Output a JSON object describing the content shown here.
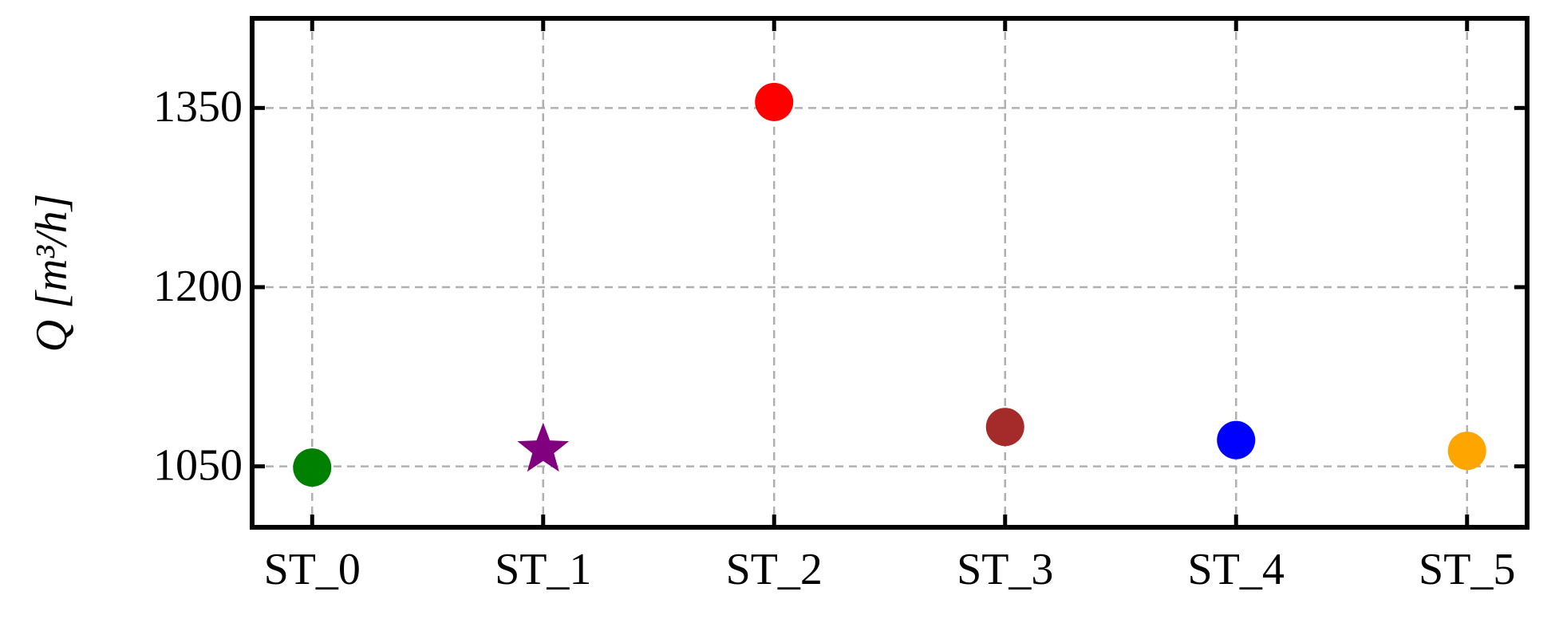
{
  "chart_data": {
    "type": "scatter",
    "ylabel": "Q [m³/h]",
    "categories": [
      "ST_0",
      "ST_1",
      "ST_2",
      "ST_3",
      "ST_4",
      "ST_5"
    ],
    "values": [
      1049,
      1064,
      1355,
      1083,
      1072,
      1063
    ],
    "colors": [
      "#008000",
      "#800080",
      "#ff0000",
      "#a52a2a",
      "#0000ff",
      "#ffa500"
    ],
    "markers": [
      "circle",
      "star",
      "circle",
      "circle",
      "circle",
      "circle"
    ],
    "ylim": [
      999,
      1425
    ],
    "yticks": [
      1050,
      1200,
      1350
    ],
    "grid": true
  }
}
